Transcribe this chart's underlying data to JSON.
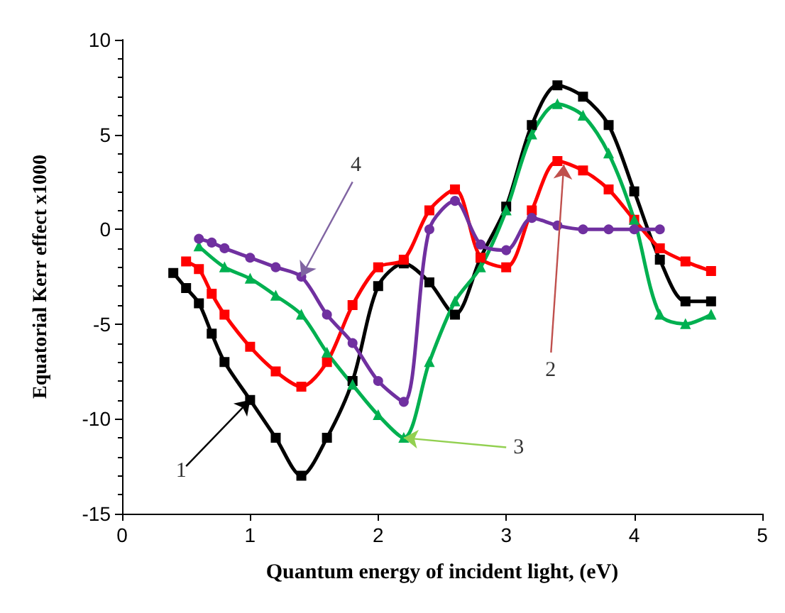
{
  "chart_data": {
    "type": "line",
    "xlabel": "Quantum energy of incident light, (eV)",
    "ylabel": "Equatorial Kerr effect x1000",
    "xlim": [
      0,
      5
    ],
    "xticks": [
      0,
      1,
      2,
      3,
      4,
      5
    ],
    "ylim": [
      -15,
      10
    ],
    "yticks": [
      -15,
      -10,
      -5,
      0,
      5,
      10
    ],
    "grid": false,
    "series": [
      {
        "color": "#000000",
        "marker": "square",
        "x": [
          0.4,
          0.5,
          0.6,
          0.7,
          0.8,
          1.0,
          1.2,
          1.4,
          1.6,
          1.8,
          2.0,
          2.2,
          2.4,
          2.6,
          2.8,
          3.0,
          3.2,
          3.4,
          3.6,
          3.8,
          4.0,
          4.2,
          4.4,
          4.6
        ],
        "values": [
          -2.3,
          -3.1,
          -3.9,
          -5.5,
          -7,
          -9,
          -11,
          -13,
          -11,
          -8,
          -3,
          -1.8,
          -2.8,
          -4.5,
          -1.5,
          1.2,
          5.5,
          7.6,
          7,
          5.5,
          2,
          -1.6,
          -3.8,
          -3.8
        ]
      },
      {
        "color": "#ff0000",
        "marker": "square",
        "x": [
          0.5,
          0.6,
          0.7,
          0.8,
          1.0,
          1.2,
          1.4,
          1.6,
          1.8,
          2.0,
          2.2,
          2.4,
          2.6,
          2.8,
          3.0,
          3.2,
          3.4,
          3.6,
          3.8,
          4.0,
          4.2,
          4.4,
          4.6
        ],
        "values": [
          -1.7,
          -2.1,
          -3.4,
          -4.5,
          -6.2,
          -7.5,
          -8.3,
          -7,
          -4,
          -2,
          -1.6,
          1,
          2.1,
          -1.5,
          -2,
          1,
          3.6,
          3.1,
          2.1,
          0.5,
          -1,
          -1.7,
          -2.2
        ]
      },
      {
        "color": "#00b050",
        "marker": "triangle",
        "x": [
          0.6,
          0.8,
          1.0,
          1.2,
          1.4,
          1.6,
          1.8,
          2.0,
          2.2,
          2.4,
          2.6,
          2.8,
          3.0,
          3.2,
          3.4,
          3.6,
          3.8,
          4.0,
          4.2,
          4.4,
          4.6
        ],
        "values": [
          -0.9,
          -2,
          -2.6,
          -3.5,
          -4.5,
          -6.5,
          -8.2,
          -9.8,
          -11,
          -7,
          -3.8,
          -2,
          1,
          5,
          6.6,
          6,
          4,
          0.5,
          -4.5,
          -5,
          -4.5
        ]
      },
      {
        "color": "#7030a0",
        "marker": "circle",
        "x": [
          0.6,
          0.7,
          0.8,
          1.0,
          1.2,
          1.4,
          1.6,
          1.8,
          2.0,
          2.2,
          2.4,
          2.6,
          2.8,
          3.0,
          3.2,
          3.4,
          3.6,
          3.8,
          4.0,
          4.2
        ],
        "values": [
          -0.5,
          -0.7,
          -1,
          -1.5,
          -2,
          -2.5,
          -4.5,
          -6,
          -8,
          -9.1,
          0,
          1.5,
          -0.8,
          -1.1,
          0.6,
          0.2,
          0,
          0,
          0,
          0
        ]
      }
    ],
    "annotations": [
      {
        "text": "1",
        "x": 1.0,
        "y": -9
      },
      {
        "text": "2",
        "x": 3.45,
        "y": 3.4
      },
      {
        "text": "3",
        "x": 2.2,
        "y": -11
      },
      {
        "text": "4",
        "x": 1.4,
        "y": -2.5
      }
    ]
  }
}
